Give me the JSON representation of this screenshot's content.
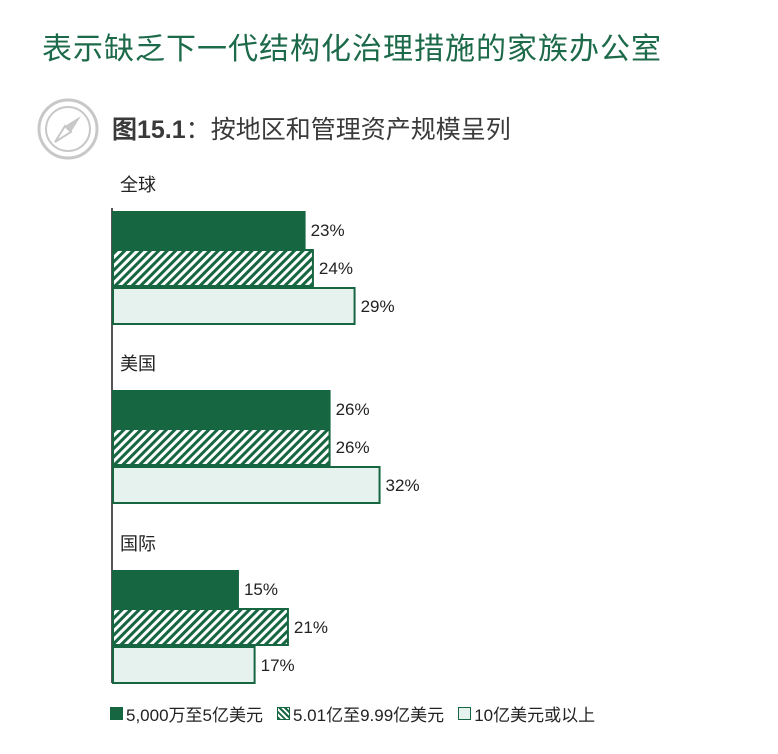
{
  "page_title": "表示缺乏下一代结构化治理措施的家族办公室",
  "figure": {
    "number": "图15.1",
    "separator": "：",
    "title": "按地区和管理资产规模呈列",
    "icon": "compass-icon"
  },
  "colors": {
    "dark_green": "#176642",
    "light_fill": "#e6f2ee",
    "border_green": "#176642",
    "title_green": "#1d6a4a"
  },
  "chart_data": {
    "type": "bar",
    "orientation": "horizontal",
    "categories": [
      "全球",
      "美国",
      "国际"
    ],
    "series": [
      {
        "name": "5,000万至5亿美元",
        "values": [
          23,
          26,
          15
        ],
        "labels": [
          "23%",
          "26%",
          "15%"
        ],
        "style": "solid"
      },
      {
        "name": "5.01亿至9.99亿美元",
        "values": [
          24,
          26,
          21
        ],
        "labels": [
          "24%",
          "26%",
          "21%"
        ],
        "style": "hatched"
      },
      {
        "name": "10亿美元或以上",
        "values": [
          29,
          32,
          17
        ],
        "labels": [
          "29%",
          "32%",
          "17%"
        ],
        "style": "light"
      }
    ],
    "unit": "%",
    "xlim": [
      0,
      100
    ],
    "grid": false,
    "legend_position": "bottom"
  }
}
